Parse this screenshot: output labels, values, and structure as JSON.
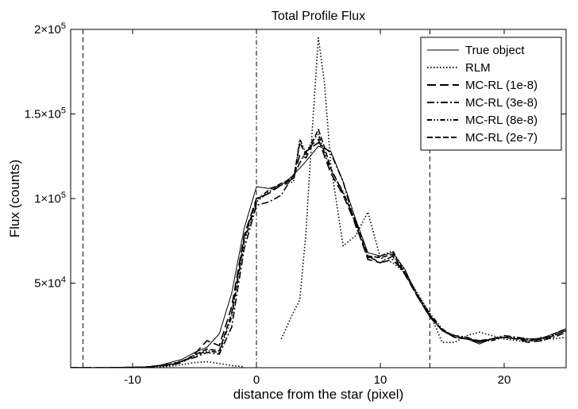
{
  "chart_data": {
    "type": "line",
    "title": "Total Profile Flux",
    "xlabel": "distance from the star (pixel)",
    "ylabel": "Flux (counts)",
    "xlim": [
      -15,
      25
    ],
    "ylim": [
      0,
      200000
    ],
    "xticks": [
      {
        "value": -10,
        "label": "-10"
      },
      {
        "value": 0,
        "label": "0"
      },
      {
        "value": 10,
        "label": "10"
      },
      {
        "value": 20,
        "label": "20"
      }
    ],
    "yticks": [
      {
        "value": 50000,
        "base": "5×10",
        "exp": "4"
      },
      {
        "value": 100000,
        "base": "1×10",
        "exp": "5"
      },
      {
        "value": 150000,
        "base": "1.5×10",
        "exp": "5"
      },
      {
        "value": 200000,
        "base": "2×10",
        "exp": "5"
      }
    ],
    "vlines": [
      {
        "x": -14,
        "style": "dashed"
      },
      {
        "x": 0,
        "style": "dashdot"
      },
      {
        "x": 14,
        "style": "dashed"
      }
    ],
    "legend_position": "top-right",
    "series": [
      {
        "name": "True object",
        "dash": "solid",
        "x": [
          -15,
          -14,
          -12,
          -10,
          -8,
          -7,
          -6,
          -5,
          -4,
          -3,
          -2,
          -1,
          0,
          1,
          2,
          3,
          4,
          5,
          6,
          7,
          8,
          9,
          10,
          11,
          12,
          13,
          14,
          15,
          16,
          17,
          18,
          19,
          20,
          21,
          22,
          23,
          24,
          25
        ],
        "y": [
          0,
          0,
          0,
          0,
          1000,
          3000,
          5000,
          9000,
          12000,
          20000,
          44000,
          82000,
          107000,
          106000,
          108000,
          114000,
          122000,
          131000,
          128000,
          110000,
          88000,
          68000,
          66000,
          68000,
          58000,
          42000,
          30000,
          22000,
          19000,
          17000,
          14000,
          17000,
          18000,
          17000,
          17000,
          17500,
          20000,
          23000
        ]
      },
      {
        "name": "RLM",
        "dash": "dotted",
        "x": [
          -15,
          -12,
          -9,
          -7,
          -6,
          -5,
          -4,
          -3,
          -2,
          -1
        ],
        "y": [
          0,
          0,
          300,
          800,
          1800,
          3000,
          3500,
          2500,
          1200,
          500
        ],
        "x2": [
          2,
          3,
          3.5,
          4,
          4.5,
          5,
          5.5,
          6,
          7,
          8,
          9,
          10,
          11,
          12,
          13,
          14,
          15,
          16,
          17,
          18,
          19,
          20,
          21,
          22,
          23,
          24,
          25
        ],
        "y2": [
          17000,
          33000,
          40000,
          80000,
          140000,
          195000,
          168000,
          120000,
          72000,
          78000,
          92000,
          65000,
          62000,
          56000,
          44000,
          32000,
          15000,
          15000,
          19000,
          21000,
          19000,
          17000,
          16000,
          15000,
          18000,
          17000,
          18000
        ]
      },
      {
        "name": "MC-RL (1e-8)",
        "dash": "long-dash",
        "x": [
          -15,
          -12,
          -9,
          -7,
          -6,
          -5,
          -4,
          -3,
          -2,
          -1,
          0,
          1,
          2,
          3,
          3.5,
          4,
          4.5,
          5,
          5.5,
          6,
          7,
          8,
          9,
          10,
          11,
          12,
          13,
          14,
          15,
          16,
          17,
          18,
          19,
          20,
          21,
          22,
          23,
          24,
          25
        ],
        "y": [
          0,
          0,
          300,
          1500,
          3000,
          8000,
          16000,
          13000,
          36000,
          78000,
          100000,
          103000,
          108000,
          112000,
          126000,
          124000,
          132000,
          135000,
          125000,
          115000,
          102000,
          85000,
          64000,
          62000,
          66000,
          55000,
          42000,
          30000,
          22000,
          18000,
          17000,
          15000,
          17000,
          18000,
          17000,
          15000,
          16000,
          19000,
          22000
        ]
      },
      {
        "name": "MC-RL (3e-8)",
        "dash": "dash-dot",
        "x": [
          -15,
          -12,
          -9,
          -7,
          -6,
          -5,
          -4,
          -3,
          -2,
          -1,
          0,
          1,
          2,
          3,
          4,
          5,
          6,
          7,
          8,
          9,
          10,
          11,
          12,
          13,
          14,
          15,
          16,
          17,
          18,
          19,
          20,
          21,
          22,
          23,
          24,
          25
        ],
        "y": [
          0,
          0,
          300,
          2000,
          4000,
          6000,
          9000,
          8000,
          24000,
          70000,
          96000,
          98000,
          102000,
          114000,
          128000,
          133000,
          127000,
          110000,
          84000,
          66000,
          62000,
          64000,
          56000,
          43000,
          31000,
          22000,
          19000,
          18000,
          15000,
          17000,
          19000,
          18000,
          17000,
          16000,
          18000,
          21000
        ]
      },
      {
        "name": "MC-RL (8e-8)",
        "dash": "dash-dot-dot",
        "x": [
          -15,
          -12,
          -9,
          -7,
          -6,
          -5,
          -4,
          -3,
          -2,
          -1,
          0,
          1,
          2,
          3,
          3.5,
          4,
          4.5,
          5,
          5.5,
          6,
          7,
          8,
          9,
          10,
          11,
          12,
          13,
          14,
          15,
          16,
          17,
          18,
          19,
          20,
          21,
          22,
          23,
          24,
          25
        ],
        "y": [
          0,
          0,
          300,
          1500,
          3500,
          7000,
          10000,
          9000,
          30000,
          74000,
          98000,
          104000,
          108000,
          110000,
          135000,
          127000,
          134000,
          138000,
          127000,
          117000,
          104000,
          86000,
          65000,
          66000,
          69000,
          57000,
          43000,
          32000,
          23000,
          18000,
          17000,
          16000,
          16000,
          18000,
          18000,
          16000,
          17000,
          19000,
          22000
        ]
      },
      {
        "name": "MC-RL (2e-7)",
        "dash": "dashed",
        "x": [
          -15,
          -12,
          -9,
          -7,
          -6,
          -5,
          -4,
          -3,
          -2,
          -1,
          0,
          1,
          2,
          3,
          3.5,
          4,
          4.5,
          5,
          5.5,
          6,
          7,
          8,
          9,
          10,
          11,
          12,
          13,
          14,
          15,
          16,
          17,
          18,
          19,
          20,
          21,
          22,
          23,
          24,
          25
        ],
        "y": [
          0,
          0,
          300,
          1800,
          3800,
          7500,
          11000,
          10000,
          32000,
          76000,
          99000,
          105000,
          109000,
          112000,
          133000,
          126000,
          133000,
          141000,
          130000,
          118000,
          103000,
          87000,
          66000,
          65000,
          67000,
          56000,
          42000,
          31000,
          22000,
          18000,
          17000,
          16000,
          17000,
          18000,
          17000,
          16000,
          17000,
          20000,
          23000
        ]
      }
    ]
  }
}
